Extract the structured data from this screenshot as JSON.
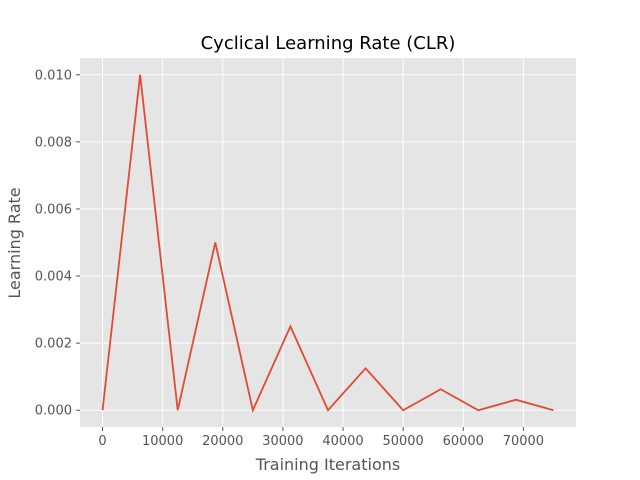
{
  "chart_data": {
    "type": "line",
    "title": "Cyclical Learning Rate (CLR)",
    "xlabel": "Training Iterations",
    "ylabel": "Learning Rate",
    "xlim": [
      -3750,
      78750
    ],
    "ylim": [
      -0.0005,
      0.0105
    ],
    "xticks": [
      0,
      10000,
      20000,
      30000,
      40000,
      50000,
      60000,
      70000
    ],
    "xtick_labels": [
      "0",
      "10000",
      "20000",
      "30000",
      "40000",
      "50000",
      "60000",
      "70000"
    ],
    "yticks": [
      0.0,
      0.002,
      0.004,
      0.006,
      0.008,
      0.01
    ],
    "ytick_labels": [
      "0.000",
      "0.002",
      "0.004",
      "0.006",
      "0.008",
      "0.010"
    ],
    "grid": true,
    "series": [
      {
        "color": "#E24A33",
        "x": [
          0,
          6250,
          12500,
          18750,
          25000,
          31250,
          37500,
          43750,
          50000,
          56250,
          62500,
          68750,
          75000
        ],
        "y": [
          0.0,
          0.01,
          0.0,
          0.005,
          0.0,
          0.0025,
          0.0,
          0.00125,
          0.0,
          0.000625,
          0.0,
          0.0003125,
          0.0
        ]
      }
    ]
  },
  "colors": {
    "plot_background": "#E5E5E5",
    "grid": "#FFFFFF",
    "line": "#E24A33"
  }
}
